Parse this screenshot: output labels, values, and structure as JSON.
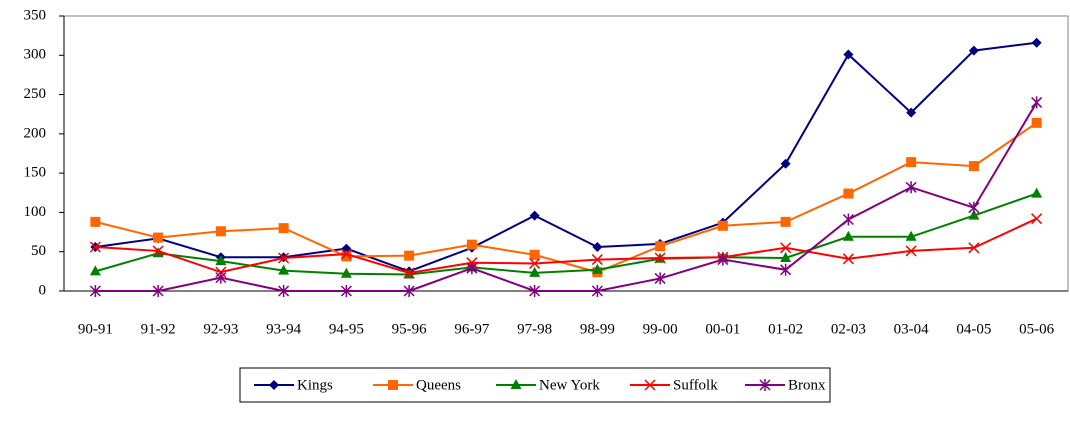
{
  "chart_data": {
    "type": "line",
    "categories": [
      "90-91",
      "91-92",
      "92-93",
      "93-94",
      "94-95",
      "95-96",
      "96-97",
      "97-98",
      "98-99",
      "99-00",
      "00-01",
      "01-02",
      "02-03",
      "03-04",
      "04-05",
      "05-06"
    ],
    "ylim": [
      0,
      350
    ],
    "yticks": [
      0,
      50,
      100,
      150,
      200,
      250,
      300,
      350
    ],
    "legend": "bottom",
    "series": [
      {
        "name": "Kings",
        "color": "#000080",
        "marker": "diamond",
        "values": [
          56,
          67,
          43,
          43,
          54,
          25,
          55,
          96,
          56,
          60,
          87,
          162,
          301,
          227,
          306,
          316
        ]
      },
      {
        "name": "Queens",
        "color": "#ff6600",
        "marker": "square",
        "values": [
          88,
          68,
          76,
          80,
          44,
          45,
          59,
          46,
          24,
          57,
          83,
          88,
          124,
          164,
          159,
          214
        ]
      },
      {
        "name": "New York",
        "color": "#008000",
        "marker": "triangle",
        "values": [
          25,
          48,
          38,
          26,
          22,
          21,
          30,
          23,
          27,
          41,
          43,
          42,
          69,
          69,
          96,
          124
        ]
      },
      {
        "name": "Suffolk",
        "color": "#ff0000",
        "marker": "x",
        "values": [
          56,
          51,
          24,
          42,
          47,
          23,
          36,
          35,
          40,
          42,
          43,
          55,
          41,
          51,
          55,
          92
        ]
      },
      {
        "name": "Bronx",
        "color": "#800080",
        "marker": "star",
        "values": [
          0,
          0,
          17,
          0,
          0,
          0,
          29,
          0,
          0,
          16,
          40,
          27,
          91,
          132,
          106,
          240
        ]
      }
    ]
  }
}
